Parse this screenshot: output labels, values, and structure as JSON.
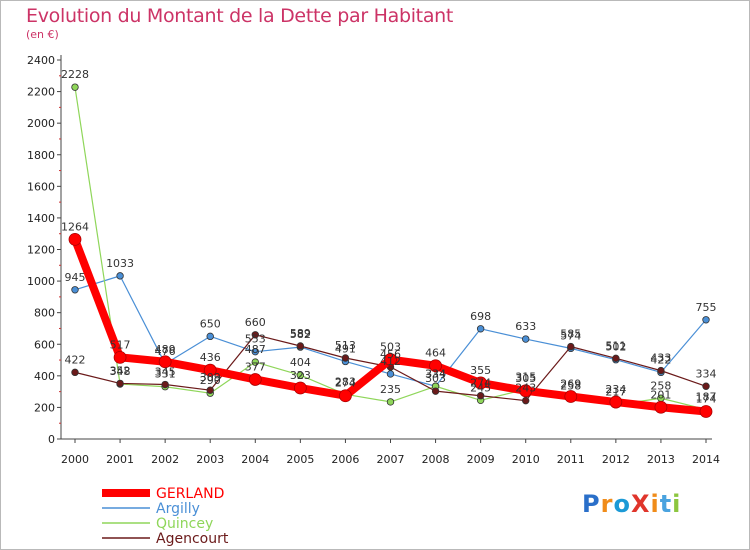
{
  "header": {
    "title": "Evolution du Montant de la Dette par Habitant",
    "unit": "(en €)"
  },
  "logo": {
    "text": "ProXiti",
    "colors": [
      "#2a6fc9",
      "#f08c1a",
      "#1c9ad6",
      "#e0352b",
      "#f08c1a",
      "#4aa3df",
      "#8cc63f"
    ]
  },
  "chart_data": {
    "type": "line",
    "title": "Evolution du Montant de la Dette par Habitant",
    "ylabel": "(en €)",
    "ylim": [
      0,
      2400
    ],
    "yticks": [
      0,
      200,
      400,
      600,
      800,
      1000,
      1200,
      1400,
      1600,
      1800,
      2000,
      2200,
      2400
    ],
    "x": [
      "2000",
      "2001",
      "2002",
      "2003",
      "2004",
      "2005",
      "2006",
      "2007",
      "2008",
      "2009",
      "2010",
      "2011",
      "2012",
      "2013",
      "2014"
    ],
    "grid": false,
    "legend": "bottom-left",
    "series": [
      {
        "name": "Argilly",
        "color": "#4a8fd6",
        "values": [
          945,
          1033,
          476,
          650,
          553,
          582,
          491,
          412,
          334,
          698,
          633,
          574,
          502,
          422,
          755
        ]
      },
      {
        "name": "Quincey",
        "color": "#8fd65a",
        "values": [
          2228,
          348,
          331,
          290,
          487,
          404,
          283,
          235,
          334,
          245,
          315,
          258,
          217,
          258,
          187
        ]
      },
      {
        "name": "Agencourt",
        "color": "#6b1a1a",
        "values": [
          422,
          352,
          345,
          309,
          660,
          589,
          513,
          456,
          303,
          274,
          243,
          585,
          511,
          433,
          334
        ]
      },
      {
        "name": "GERLAND",
        "color": "#ff0000",
        "values": [
          1264,
          517,
          489,
          436,
          377,
          323,
          274,
          503,
          464,
          355,
          305,
          269,
          234,
          201,
          174
        ]
      }
    ],
    "data_labels": [
      [
        945,
        1033,
        476,
        650,
        553,
        582,
        491,
        412,
        334,
        698,
        633,
        574,
        502,
        422,
        755
      ],
      [
        2228,
        348,
        331,
        290,
        487,
        404,
        283,
        235,
        334,
        245,
        315,
        258,
        217,
        258,
        187
      ],
      [
        422,
        352,
        345,
        309,
        660,
        589,
        513,
        456,
        303,
        274,
        243,
        585,
        511,
        433,
        334
      ],
      [
        1264,
        517,
        489,
        436,
        377,
        323,
        274,
        503,
        464,
        355,
        305,
        269,
        234,
        201,
        174
      ]
    ]
  }
}
